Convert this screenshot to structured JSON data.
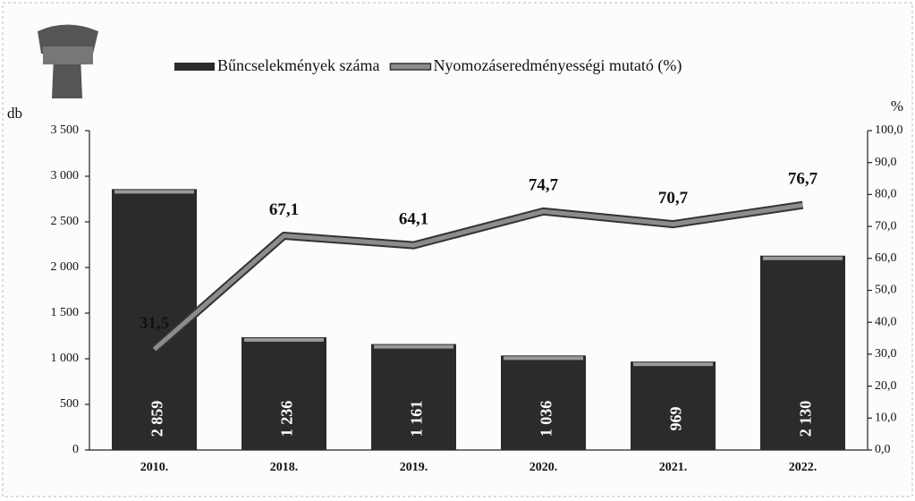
{
  "chart_data": {
    "type": "bar",
    "categories": [
      "2010.",
      "2018.",
      "2019.",
      "2020.",
      "2021.",
      "2022."
    ],
    "series": [
      {
        "name": "Bűncselekmények száma",
        "type": "bar",
        "color": "#2b2b2b",
        "values": [
          2859,
          1236,
          1161,
          1036,
          969,
          2130
        ],
        "value_labels": [
          "2 859",
          "1 236",
          "1 161",
          "1 036",
          "969",
          "2 130"
        ]
      },
      {
        "name": "Nyomozáseredményességi mutató (%)",
        "type": "line",
        "axis": "y2",
        "color": "#8c8c8c",
        "values": [
          31.5,
          67.1,
          64.1,
          74.7,
          70.7,
          76.7
        ],
        "value_labels": [
          "31,5",
          "67,1",
          "64,1",
          "74,7",
          "70,7",
          "76,7"
        ]
      }
    ],
    "ylabel": "db",
    "y2label": "%",
    "ylim": [
      0,
      3500
    ],
    "yticks": [
      0,
      500,
      {
        "value": 1000,
        "label": "1 000"
      },
      {
        "value": 1500,
        "label": "1 500"
      },
      {
        "value": 2000,
        "label": "2 000"
      },
      {
        "value": 2500,
        "label": "2 500"
      },
      {
        "value": 3000,
        "label": "3 000"
      },
      {
        "value": 3500,
        "label": "3 500"
      }
    ],
    "y2lim": [
      0,
      100
    ],
    "y2ticks": [
      {
        "value": 0,
        "label": "0,0"
      },
      {
        "value": 10,
        "label": "10,0"
      },
      {
        "value": 20,
        "label": "20,0"
      },
      {
        "value": 30,
        "label": "30,0"
      },
      {
        "value": 40,
        "label": "40,0"
      },
      {
        "value": 50,
        "label": "50,0"
      },
      {
        "value": 60,
        "label": "60,0"
      },
      {
        "value": 70,
        "label": "70,0"
      },
      {
        "value": 80,
        "label": "80,0"
      },
      {
        "value": 90,
        "label": "90,0"
      },
      {
        "value": 100,
        "label": "100,0"
      }
    ],
    "legend": "top",
    "grid": false
  }
}
